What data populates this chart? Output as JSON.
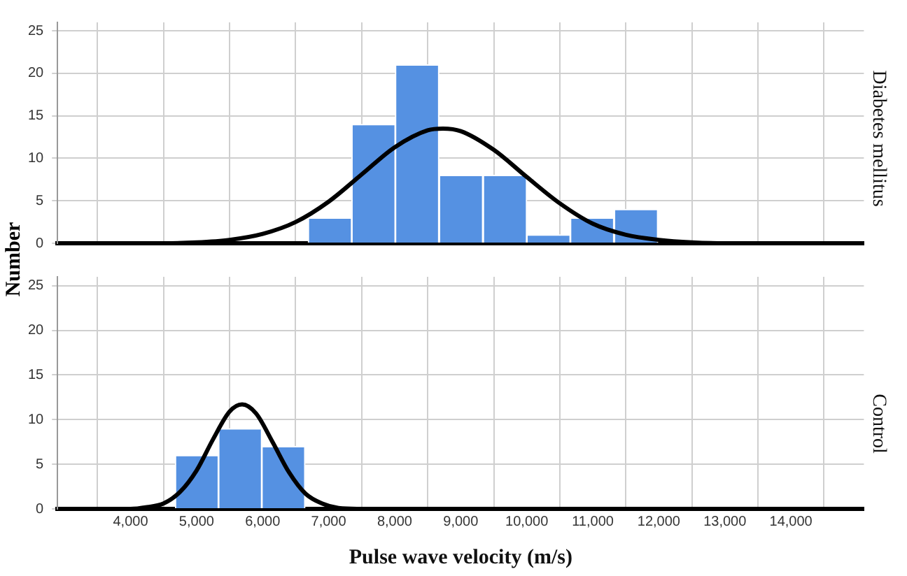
{
  "chart_data": [
    {
      "type": "histogram",
      "y2label": "Diabetes mellitus",
      "ylabel": "Number",
      "xlim": [
        3450,
        14550
      ],
      "xticks": [
        4000,
        5000,
        6000,
        7000,
        8000,
        9000,
        10000,
        11000,
        12000,
        13000,
        14000
      ],
      "ylim": [
        0,
        26
      ],
      "yticks": [
        0,
        5,
        10,
        15,
        20,
        25
      ],
      "grid": true,
      "tick_labels": "y",
      "series": [
        {
          "type": "histogram",
          "color": "#5591e2",
          "bins": [
            6690,
            7350,
            8010,
            8670,
            9340,
            10000,
            10660,
            11320,
            11990
          ],
          "values": [
            3,
            14,
            21,
            8,
            8,
            1,
            3,
            4
          ]
        },
        {
          "type": "line",
          "color": "#000000",
          "marker": "none",
          "x": [
            3500,
            4000,
            4500,
            5000,
            5500,
            6000,
            6500,
            7000,
            7500,
            8000,
            8500,
            8730,
            9000,
            9500,
            10000,
            10500,
            11000,
            11500,
            12000,
            12500,
            13000,
            13500,
            14000,
            14550
          ],
          "values": [
            0,
            0,
            0,
            0.1,
            0.4,
            1.1,
            2.5,
            4.9,
            8.1,
            11.3,
            13.3,
            13.5,
            13.2,
            11,
            7.8,
            4.7,
            2.3,
            1,
            0.4,
            0.1,
            0,
            0,
            0,
            0
          ]
        }
      ]
    },
    {
      "type": "histogram",
      "y2label": "Control",
      "xlabel": "Pulse wave velocity (m/s)",
      "xlim": [
        3450,
        14550
      ],
      "xticks": [
        {
          "value": 4000,
          "label": "4,000"
        },
        {
          "value": 5000,
          "label": "5,000"
        },
        {
          "value": 6000,
          "label": "6,000"
        },
        {
          "value": 7000,
          "label": "7,000"
        },
        {
          "value": 8000,
          "label": "8,000"
        },
        {
          "value": 9000,
          "label": "9,000"
        },
        {
          "value": 10000,
          "label": "10,000"
        },
        {
          "value": 11000,
          "label": "11,000"
        },
        {
          "value": 12000,
          "label": "12,000"
        },
        {
          "value": 13000,
          "label": "13,000"
        },
        {
          "value": 14000,
          "label": "14,000"
        }
      ],
      "ylim": [
        0,
        26
      ],
      "yticks": [
        0,
        5,
        10,
        15,
        20,
        25
      ],
      "grid": true,
      "series": [
        {
          "type": "histogram",
          "color": "#5591e2",
          "bins": [
            4680,
            5330,
            5990,
            6640
          ],
          "values": [
            6,
            9,
            7
          ]
        },
        {
          "type": "line",
          "color": "#000000",
          "marker": "none",
          "x": [
            3450,
            4000,
            4250,
            4500,
            4750,
            5000,
            5250,
            5500,
            5690,
            5900,
            6150,
            6400,
            6650,
            6900,
            7150,
            7500,
            8000,
            14550
          ],
          "values": [
            0,
            0,
            0.2,
            0.6,
            1.9,
            4.3,
            7.8,
            10.9,
            11.7,
            10.7,
            7.5,
            4.1,
            1.7,
            0.6,
            0.1,
            0,
            0,
            0
          ]
        }
      ]
    }
  ]
}
